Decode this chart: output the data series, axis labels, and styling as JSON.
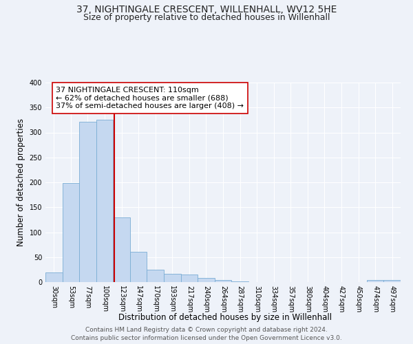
{
  "title": "37, NIGHTINGALE CRESCENT, WILLENHALL, WV12 5HE",
  "subtitle": "Size of property relative to detached houses in Willenhall",
  "xlabel": "Distribution of detached houses by size in Willenhall",
  "ylabel": "Number of detached properties",
  "footer_line1": "Contains HM Land Registry data © Crown copyright and database right 2024.",
  "footer_line2": "Contains public sector information licensed under the Open Government Licence v3.0.",
  "bar_labels": [
    "30sqm",
    "53sqm",
    "77sqm",
    "100sqm",
    "123sqm",
    "147sqm",
    "170sqm",
    "193sqm",
    "217sqm",
    "240sqm",
    "264sqm",
    "287sqm",
    "310sqm",
    "334sqm",
    "357sqm",
    "380sqm",
    "404sqm",
    "427sqm",
    "450sqm",
    "474sqm",
    "497sqm"
  ],
  "bar_values": [
    19,
    198,
    321,
    326,
    129,
    61,
    25,
    17,
    15,
    8,
    4,
    2,
    0,
    0,
    0,
    0,
    0,
    0,
    0,
    4,
    4
  ],
  "bar_color": "#c5d8f0",
  "bar_edge_color": "#7aadd4",
  "ylim": [
    0,
    400
  ],
  "yticks": [
    0,
    50,
    100,
    150,
    200,
    250,
    300,
    350,
    400
  ],
  "property_line_x": 3.55,
  "property_line_color": "#cc0000",
  "annotation_text": "37 NIGHTINGALE CRESCENT: 110sqm\n← 62% of detached houses are smaller (688)\n37% of semi-detached houses are larger (408) →",
  "annotation_box_color": "#ffffff",
  "annotation_box_edge": "#cc0000",
  "background_color": "#eef2f9",
  "plot_background": "#eef2f9",
  "grid_color": "#ffffff",
  "title_fontsize": 10,
  "subtitle_fontsize": 9,
  "axis_label_fontsize": 8.5,
  "tick_fontsize": 7,
  "annotation_fontsize": 8,
  "footer_fontsize": 6.5
}
